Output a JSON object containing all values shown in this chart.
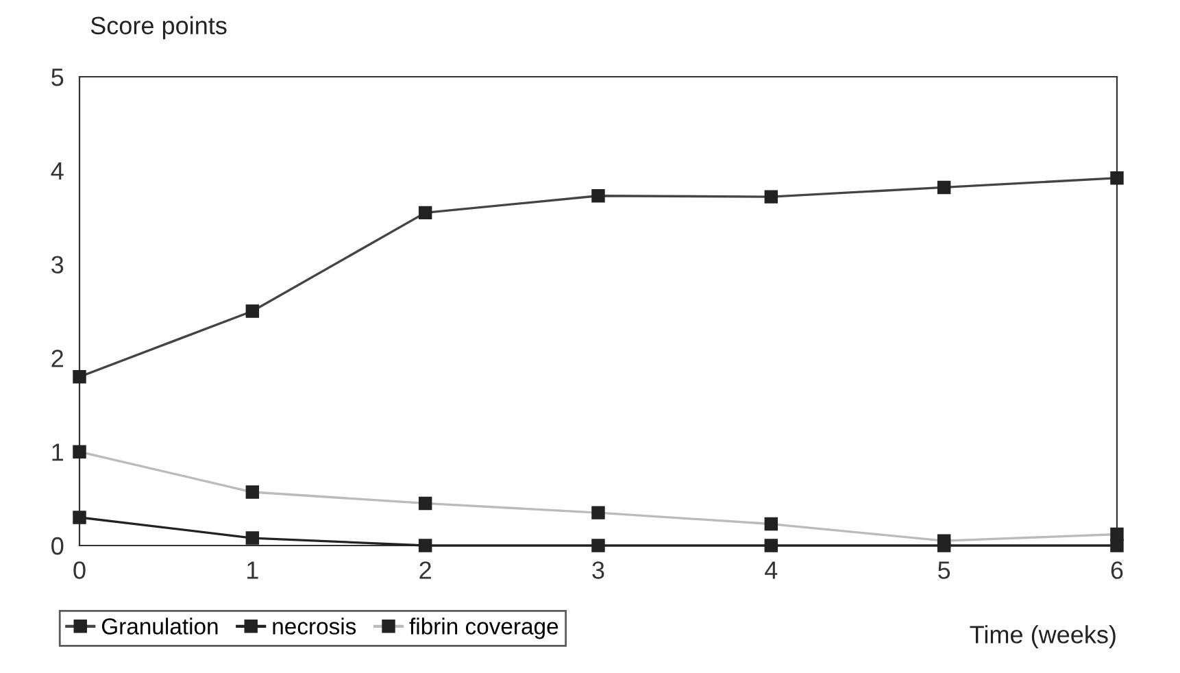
{
  "chart_data": {
    "type": "line",
    "ylabel": "Score points",
    "xlabel": "Time (weeks)",
    "x": [
      0,
      1,
      2,
      3,
      4,
      5,
      6
    ],
    "xlim": [
      0,
      6
    ],
    "xticks": [
      0,
      1,
      2,
      3,
      4,
      5,
      6
    ],
    "ylim": [
      0,
      5
    ],
    "yticks": [
      0,
      1,
      2,
      3,
      4,
      5
    ],
    "grid": false,
    "legend": "bottom left",
    "marker": "square",
    "line_style": "solid",
    "series": [
      {
        "name": "Granulation",
        "color": "#444444",
        "values": [
          1.8,
          2.5,
          3.55,
          3.73,
          3.72,
          3.82,
          3.92
        ]
      },
      {
        "name": "necrosis",
        "color": "#222222",
        "values": [
          0.3,
          0.08,
          0,
          0,
          0,
          0,
          0
        ]
      },
      {
        "name": "fibrin coverage",
        "color": "#bbbbbb",
        "values": [
          1.0,
          0.57,
          0.45,
          0.35,
          0.23,
          0.05,
          0.12
        ]
      }
    ]
  }
}
